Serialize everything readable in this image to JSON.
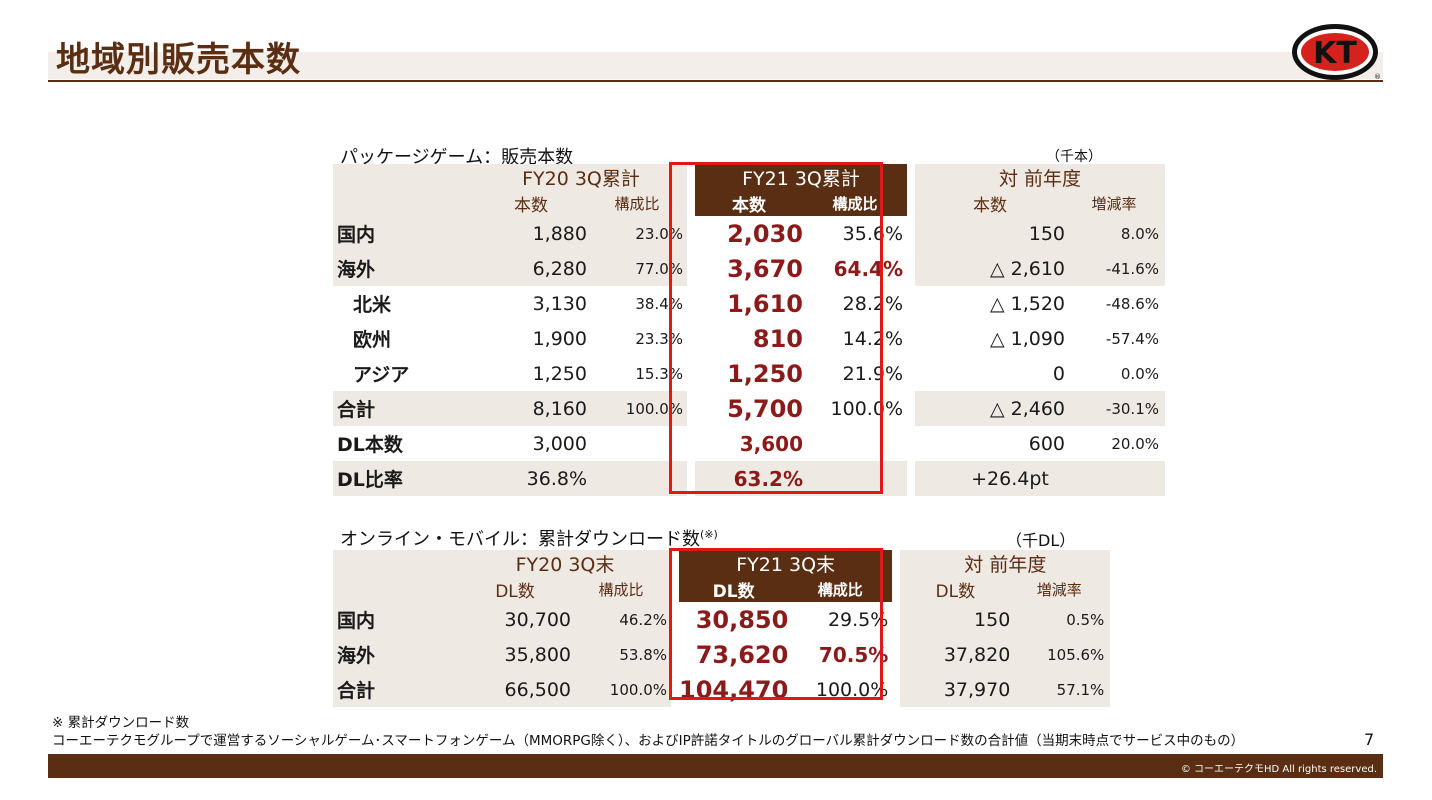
{
  "page": {
    "title": "地域別販売本数",
    "page_number": "7",
    "copyright": "© コーエーテクモHD All rights reserved.",
    "logo_text": "KT"
  },
  "package": {
    "section_title": "パッケージゲーム：販売本数",
    "unit": "（千本）",
    "header": {
      "prev_title": "FY20 3Q累計",
      "prev_units": "本数",
      "prev_ratio": "構成比",
      "cur_title": "FY21 3Q累計",
      "cur_units": "本数",
      "cur_ratio": "構成比",
      "yoy_title": "対 前年度",
      "yoy_units": "本数",
      "yoy_rate": "増減率"
    },
    "rows": [
      {
        "label": "国内",
        "prev": "1,880",
        "prev_ratio": "23.0%",
        "cur": "2,030",
        "cur_ratio": "35.6%",
        "yoy": "150",
        "yoy_rate": "8.0%"
      },
      {
        "label": "海外",
        "prev": "6,280",
        "prev_ratio": "77.0%",
        "cur": "3,670",
        "cur_ratio": "64.4%",
        "yoy": "△ 2,610",
        "yoy_rate": "-41.6%"
      },
      {
        "label": "北米",
        "prev": "3,130",
        "prev_ratio": "38.4%",
        "cur": "1,610",
        "cur_ratio": "28.2%",
        "yoy": "△ 1,520",
        "yoy_rate": "-48.6%"
      },
      {
        "label": "欧州",
        "prev": "1,900",
        "prev_ratio": "23.3%",
        "cur": "810",
        "cur_ratio": "14.2%",
        "yoy": "△ 1,090",
        "yoy_rate": "-57.4%"
      },
      {
        "label": "アジア",
        "prev": "1,250",
        "prev_ratio": "15.3%",
        "cur": "1,250",
        "cur_ratio": "21.9%",
        "yoy": "0",
        "yoy_rate": "0.0%"
      },
      {
        "label": "合計",
        "prev": "8,160",
        "prev_ratio": "100.0%",
        "cur": "5,700",
        "cur_ratio": "100.0%",
        "yoy": "△ 2,460",
        "yoy_rate": "-30.1%"
      },
      {
        "label": "DL本数",
        "prev": "3,000",
        "prev_ratio": "",
        "cur": "3,600",
        "cur_ratio": "",
        "yoy": "600",
        "yoy_rate": "20.0%"
      },
      {
        "label": "DL比率",
        "prev": "36.8%",
        "prev_ratio": "",
        "cur": "63.2%",
        "cur_ratio": "",
        "yoy": "+26.4pt",
        "yoy_rate": ""
      }
    ]
  },
  "online": {
    "section_title": "オンライン・モバイル：累計ダウンロード数",
    "section_mark": "(※)",
    "unit": "（千DL）",
    "header": {
      "prev_title": "FY20 3Q末",
      "prev_units": "DL数",
      "prev_ratio": "構成比",
      "cur_title": "FY21 3Q末",
      "cur_units": "DL数",
      "cur_ratio": "構成比",
      "yoy_title": "対 前年度",
      "yoy_units": "DL数",
      "yoy_rate": "増減率"
    },
    "rows": [
      {
        "label": "国内",
        "prev": "30,700",
        "prev_ratio": "46.2%",
        "cur": "30,850",
        "cur_ratio": "29.5%",
        "yoy": "150",
        "yoy_rate": "0.5%"
      },
      {
        "label": "海外",
        "prev": "35,800",
        "prev_ratio": "53.8%",
        "cur": "73,620",
        "cur_ratio": "70.5%",
        "yoy": "37,820",
        "yoy_rate": "105.6%"
      },
      {
        "label": "合計",
        "prev": "66,500",
        "prev_ratio": "100.0%",
        "cur": "104,470",
        "cur_ratio": "100.0%",
        "yoy": "37,970",
        "yoy_rate": "57.1%"
      }
    ]
  },
  "footnote": {
    "line1": "※ 累計ダウンロード数",
    "line2": "コーエーテクモグループで運営するソーシャルゲーム･スマートフォンゲーム（MMORPG除く）、およびIP許諾タイトルのグローバル累計ダウンロード数の合計値（当期末時点でサービス中のもの）"
  },
  "colors": {
    "brand_brown": "#5a2e12",
    "highlight_red": "#8b1a1a",
    "box_red": "#e01818",
    "shade": "#efe9e4"
  }
}
